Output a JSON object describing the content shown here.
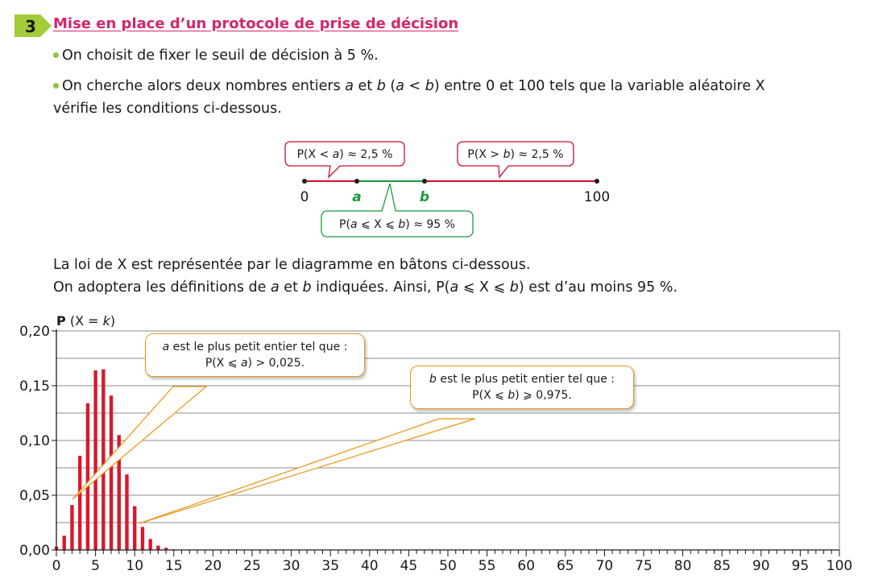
{
  "section": {
    "number": "3",
    "title": "Mise en place d’un protocole de prise de décision"
  },
  "bullets": {
    "b1": "On choisit de fixer le seuil de décision à 5 %.",
    "b2_p1": "On cherche alors deux nombres entiers ",
    "b2_a": "a",
    "b2_p2": " et ",
    "b2_b": "b",
    "b2_p3": " (",
    "b2_p4": " < ",
    "b2_p5": ") entre 0 et 100 tels que la variable aléatoire X",
    "b2_line2": "vérifie les conditions ci-dessous."
  },
  "diagram": {
    "label_0": "0",
    "label_a": "a",
    "label_b": "b",
    "label_100": "100",
    "bubble_left": {
      "p1": "P(X < ",
      "v": "a",
      "p2": ") ≈ 2,5 %"
    },
    "bubble_right": {
      "p1": "P(X > ",
      "v": "b",
      "p2": ") ≈ 2,5 %"
    },
    "bubble_middle": {
      "p1": "P(",
      "v1": "a",
      "p2": " ⩽ X ⩽ ",
      "v2": "b",
      "p3": ") ≈ 95 %"
    },
    "colors": {
      "red": "#c8102e",
      "green": "#1a9a3c"
    }
  },
  "text_block": {
    "line1": "La loi de X est représentée par le diagramme en bâtons ci-dessous.",
    "line2_p1": "On adoptera les définitions de ",
    "line2_a": "a",
    "line2_p2": " et ",
    "line2_b": "b",
    "line2_p3": " indiquées. Ainsi, P(",
    "line2_a2": "a",
    "line2_p4": " ⩽ X ⩽ ",
    "line2_b2": "b",
    "line2_p5": ") est d’au moins 95 %."
  },
  "callouts": {
    "a_line1_var": "a",
    "a_line1": " est le plus petit entier tel que :",
    "a_line2_p1": "P(X ⩽ ",
    "a_line2_v": "a",
    "a_line2_p2": ") > 0,025.",
    "b_line1_var": "b",
    "b_line1": " est le plus petit entier tel que :",
    "b_line2_p1": "P(X ⩽ ",
    "b_line2_v": "b",
    "b_line2_p2": ") ⩾ 0,975."
  },
  "chart_data": {
    "type": "bar",
    "ylabel_bold": "P",
    "ylabel_rest": " (X = ",
    "ylabel_var": "k",
    "ylabel_end": ")",
    "xlim": [
      0,
      100
    ],
    "ylim": [
      0,
      0.2
    ],
    "y_ticks": [
      0,
      0.05,
      0.1,
      0.15,
      0.2
    ],
    "y_tick_labels": [
      "0,00",
      "0,05",
      "0,10",
      "0,15",
      "0,20"
    ],
    "x_ticks": [
      0,
      5,
      10,
      15,
      20,
      25,
      30,
      35,
      40,
      45,
      50,
      55,
      60,
      65,
      70,
      75,
      80,
      85,
      90,
      95,
      100
    ],
    "x_tick_labels": [
      "0",
      "5",
      "10",
      "15",
      "20",
      "25",
      "30",
      "35",
      "40",
      "45",
      "50",
      "55",
      "60",
      "65",
      "70",
      "75",
      "80",
      "85",
      "90",
      "95",
      "100"
    ],
    "grid": "horizontal",
    "bar_color": "#d7192d",
    "x": [
      0,
      1,
      2,
      3,
      4,
      5,
      6,
      7,
      8,
      9,
      10,
      11,
      12,
      13,
      14,
      15
    ],
    "values": [
      0.003,
      0.013,
      0.041,
      0.086,
      0.134,
      0.164,
      0.165,
      0.141,
      0.105,
      0.069,
      0.04,
      0.021,
      0.01,
      0.004,
      0.002,
      0.0005
    ]
  }
}
